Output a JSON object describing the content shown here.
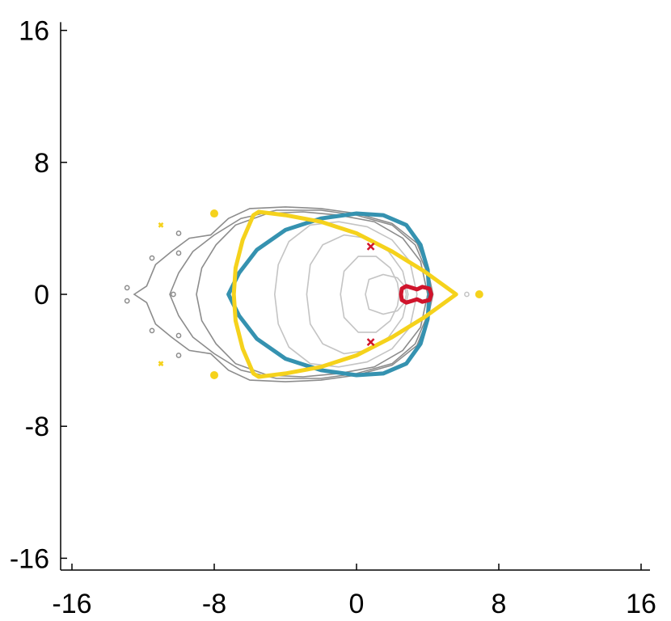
{
  "chart_data": {
    "type": "line",
    "title": "",
    "xlabel": "",
    "ylabel": "",
    "xlim": [
      -16.5,
      16.5
    ],
    "ylim": [
      -16.5,
      16.5
    ],
    "grid": false,
    "legend": "none",
    "x_ticks": [
      {
        "value": -16,
        "label": "-16"
      },
      {
        "value": -8,
        "label": "-8"
      },
      {
        "value": 0,
        "label": "0"
      },
      {
        "value": 8,
        "label": "8"
      },
      {
        "value": 16,
        "label": "16"
      }
    ],
    "y_ticks": [
      {
        "value": 16,
        "label": "16"
      },
      {
        "value": 8,
        "label": "8"
      },
      {
        "value": 0,
        "label": "0"
      },
      {
        "value": -8,
        "label": "-8"
      },
      {
        "value": -16,
        "label": "-16"
      }
    ],
    "colors": {
      "blue": "#3592b0",
      "yellow": "#f5d21c",
      "red": "#d0142c",
      "contour_dark": "#8c8c8c",
      "contour_light": "#c4c4c4"
    },
    "series": [
      {
        "color": "#3592b0",
        "closed": true,
        "points": [
          [
            -7.2,
            0
          ],
          [
            -6.6,
            1.3
          ],
          [
            -5.6,
            2.7
          ],
          [
            -4,
            3.9
          ],
          [
            -2,
            4.6
          ],
          [
            0,
            4.9
          ],
          [
            1.5,
            4.8
          ],
          [
            2.8,
            4.2
          ],
          [
            3.6,
            3
          ],
          [
            4,
            1.5
          ],
          [
            4.1,
            0
          ],
          [
            4,
            -1.5
          ],
          [
            3.6,
            -3
          ],
          [
            2.8,
            -4.2
          ],
          [
            1.5,
            -4.8
          ],
          [
            0,
            -4.9
          ],
          [
            -2,
            -4.6
          ],
          [
            -4,
            -3.9
          ],
          [
            -5.6,
            -2.7
          ],
          [
            -6.6,
            -1.3
          ],
          [
            -7.2,
            0
          ]
        ]
      },
      {
        "color": "#f5d21c",
        "closed": true,
        "points": [
          [
            -6.9,
            0
          ],
          [
            -6.8,
            1.6
          ],
          [
            -6.4,
            3.3
          ],
          [
            -5.8,
            4.8
          ],
          [
            -5.5,
            5
          ],
          [
            -4,
            4.8
          ],
          [
            -2,
            4.4
          ],
          [
            0,
            3.7
          ],
          [
            2,
            2.6
          ],
          [
            3.8,
            1.4
          ],
          [
            5.6,
            0
          ],
          [
            3.8,
            -1.4
          ],
          [
            2,
            -2.6
          ],
          [
            0,
            -3.7
          ],
          [
            -2,
            -4.4
          ],
          [
            -4,
            -4.8
          ],
          [
            -5.5,
            -5
          ],
          [
            -5.8,
            -4.8
          ],
          [
            -6.4,
            -3.3
          ],
          [
            -6.8,
            -1.6
          ],
          [
            -6.9,
            0
          ]
        ]
      },
      {
        "color": "#d0142c",
        "closed": true,
        "points": [
          [
            2.5,
            0
          ],
          [
            2.55,
            0.35
          ],
          [
            2.8,
            0.5
          ],
          [
            3.1,
            0.4
          ],
          [
            3.4,
            0.3
          ],
          [
            3.7,
            0.45
          ],
          [
            4.1,
            0.35
          ],
          [
            4.2,
            0
          ],
          [
            4.1,
            -0.35
          ],
          [
            3.7,
            -0.45
          ],
          [
            3.4,
            -0.3
          ],
          [
            3.1,
            -0.4
          ],
          [
            2.8,
            -0.5
          ],
          [
            2.55,
            -0.35
          ],
          [
            2.5,
            0
          ]
        ]
      }
    ],
    "contour_levels": [
      {
        "color": "#8c8c8c",
        "points": [
          [
            -12.5,
            0
          ],
          [
            -11.8,
            0.5
          ],
          [
            -11.3,
            1.8
          ],
          [
            -10.4,
            2.6
          ],
          [
            -9.4,
            3.4
          ],
          [
            -8.2,
            3.6
          ],
          [
            -7.2,
            4.6
          ],
          [
            -6,
            5.2
          ],
          [
            -4,
            5.3
          ],
          [
            -2,
            5.2
          ],
          [
            0,
            4.9
          ],
          [
            2,
            4.3
          ],
          [
            3.4,
            3.1
          ],
          [
            4,
            1.5
          ],
          [
            4.3,
            0
          ],
          [
            4,
            -1.5
          ],
          [
            3.4,
            -3.1
          ],
          [
            2,
            -4.3
          ],
          [
            0,
            -4.9
          ],
          [
            -2,
            -5.2
          ],
          [
            -4,
            -5.3
          ],
          [
            -6,
            -5.2
          ],
          [
            -7.2,
            -4.6
          ],
          [
            -8.2,
            -3.6
          ],
          [
            -9.4,
            -3.4
          ],
          [
            -10.4,
            -2.6
          ],
          [
            -11.3,
            -1.8
          ],
          [
            -11.8,
            -0.5
          ],
          [
            -12.5,
            0
          ]
        ]
      },
      {
        "color": "#8c8c8c",
        "points": [
          [
            -10.5,
            0
          ],
          [
            -10,
            1.3
          ],
          [
            -9.2,
            2.6
          ],
          [
            -8,
            3.6
          ],
          [
            -6.5,
            4.6
          ],
          [
            -4.5,
            5.1
          ],
          [
            -2,
            5.1
          ],
          [
            0,
            4.8
          ],
          [
            2,
            4.2
          ],
          [
            3.3,
            3
          ],
          [
            3.9,
            1.5
          ],
          [
            4.2,
            0
          ],
          [
            3.9,
            -1.5
          ],
          [
            3.3,
            -3
          ],
          [
            2,
            -4.2
          ],
          [
            0,
            -4.8
          ],
          [
            -2,
            -5.1
          ],
          [
            -4.5,
            -5.1
          ],
          [
            -6.5,
            -4.6
          ],
          [
            -8,
            -3.6
          ],
          [
            -9.2,
            -2.6
          ],
          [
            -10,
            -1.3
          ],
          [
            -10.5,
            0
          ]
        ]
      },
      {
        "color": "#8c8c8c",
        "points": [
          [
            -9,
            0
          ],
          [
            -8.7,
            1.6
          ],
          [
            -7.9,
            3
          ],
          [
            -6.8,
            4.2
          ],
          [
            -5,
            4.9
          ],
          [
            -3,
            5
          ],
          [
            -1,
            4.8
          ],
          [
            1,
            4.4
          ],
          [
            2.6,
            3.4
          ],
          [
            3.6,
            2
          ],
          [
            4,
            0
          ],
          [
            3.6,
            -2
          ],
          [
            2.6,
            -3.4
          ],
          [
            1,
            -4.4
          ],
          [
            -1,
            -4.8
          ],
          [
            -3,
            -5
          ],
          [
            -5,
            -4.9
          ],
          [
            -6.8,
            -4.2
          ],
          [
            -7.9,
            -3
          ],
          [
            -8.7,
            -1.6
          ],
          [
            -9,
            0
          ]
        ]
      },
      {
        "color": "#c4c4c4",
        "points": [
          [
            -4.6,
            0
          ],
          [
            -4.4,
            1.8
          ],
          [
            -3.8,
            3.2
          ],
          [
            -2.6,
            4.2
          ],
          [
            -1,
            4.4
          ],
          [
            0.6,
            4.1
          ],
          [
            2,
            3.3
          ],
          [
            3,
            2
          ],
          [
            3.4,
            0
          ],
          [
            3,
            -2
          ],
          [
            2,
            -3.3
          ],
          [
            0.6,
            -4.1
          ],
          [
            -1,
            -4.4
          ],
          [
            -2.6,
            -4.2
          ],
          [
            -3.8,
            -3.2
          ],
          [
            -4.4,
            -1.8
          ],
          [
            -4.6,
            0
          ]
        ]
      },
      {
        "color": "#c4c4c4",
        "points": [
          [
            -2.8,
            0
          ],
          [
            -2.6,
            1.8
          ],
          [
            -1.9,
            3
          ],
          [
            -0.7,
            3.6
          ],
          [
            0.6,
            3.4
          ],
          [
            1.8,
            2.6
          ],
          [
            2.6,
            1.4
          ],
          [
            2.9,
            0
          ],
          [
            2.6,
            -1.4
          ],
          [
            1.8,
            -2.6
          ],
          [
            0.6,
            -3.4
          ],
          [
            -0.7,
            -3.6
          ],
          [
            -1.9,
            -3
          ],
          [
            -2.6,
            -1.8
          ],
          [
            -2.8,
            0
          ]
        ]
      },
      {
        "color": "#c4c4c4",
        "points": [
          [
            -0.9,
            0
          ],
          [
            -0.7,
            1.4
          ],
          [
            0.1,
            2.3
          ],
          [
            1.1,
            2.3
          ],
          [
            1.9,
            1.6
          ],
          [
            2.3,
            0.7
          ],
          [
            2.4,
            0
          ],
          [
            2.3,
            -0.7
          ],
          [
            1.9,
            -1.6
          ],
          [
            1.1,
            -2.3
          ],
          [
            0.1,
            -2.3
          ],
          [
            -0.7,
            -1.4
          ],
          [
            -0.9,
            0
          ]
        ]
      },
      {
        "color": "#c4c4c4",
        "points": [
          [
            0.5,
            0
          ],
          [
            0.7,
            0.9
          ],
          [
            1.5,
            1.2
          ],
          [
            2.3,
            1
          ],
          [
            2.7,
            0.5
          ],
          [
            2.8,
            0
          ],
          [
            2.7,
            -0.5
          ],
          [
            2.3,
            -1
          ],
          [
            1.5,
            -1.2
          ],
          [
            0.7,
            -0.9
          ],
          [
            0.5,
            0
          ]
        ]
      }
    ],
    "markers": [
      {
        "color": "#f5d21c",
        "shape": "circle",
        "x": -8,
        "y": 4.9
      },
      {
        "color": "#f5d21c",
        "shape": "circle",
        "x": -8,
        "y": -4.9
      },
      {
        "color": "#f5d21c",
        "shape": "circle",
        "x": 6.9,
        "y": 0
      },
      {
        "color": "#f5d21c",
        "shape": "cross",
        "x": -11,
        "y": 4.2
      },
      {
        "color": "#f5d21c",
        "shape": "cross",
        "x": -11,
        "y": -4.2
      },
      {
        "color": "#d0142c",
        "shape": "cross",
        "x": 0.8,
        "y": 2.9
      },
      {
        "color": "#d0142c",
        "shape": "cross",
        "x": 0.8,
        "y": -2.9
      },
      {
        "color": "#8c8c8c",
        "shape": "ring",
        "x": -11.5,
        "y": 2.2
      },
      {
        "color": "#8c8c8c",
        "shape": "ring",
        "x": -11.5,
        "y": -2.2
      },
      {
        "color": "#8c8c8c",
        "shape": "ring",
        "x": -10,
        "y": 2.5
      },
      {
        "color": "#8c8c8c",
        "shape": "ring",
        "x": -10,
        "y": -2.5
      },
      {
        "color": "#8c8c8c",
        "shape": "ring",
        "x": -10,
        "y": 3.7
      },
      {
        "color": "#8c8c8c",
        "shape": "ring",
        "x": -10,
        "y": -3.7
      },
      {
        "color": "#8c8c8c",
        "shape": "ring",
        "x": -10.3,
        "y": 0
      },
      {
        "color": "#8c8c8c",
        "shape": "ring",
        "x": -12.9,
        "y": 0.4
      },
      {
        "color": "#8c8c8c",
        "shape": "ring",
        "x": -12.9,
        "y": -0.4
      },
      {
        "color": "#c4c4c4",
        "shape": "ring",
        "x": 6.2,
        "y": 0
      }
    ]
  }
}
